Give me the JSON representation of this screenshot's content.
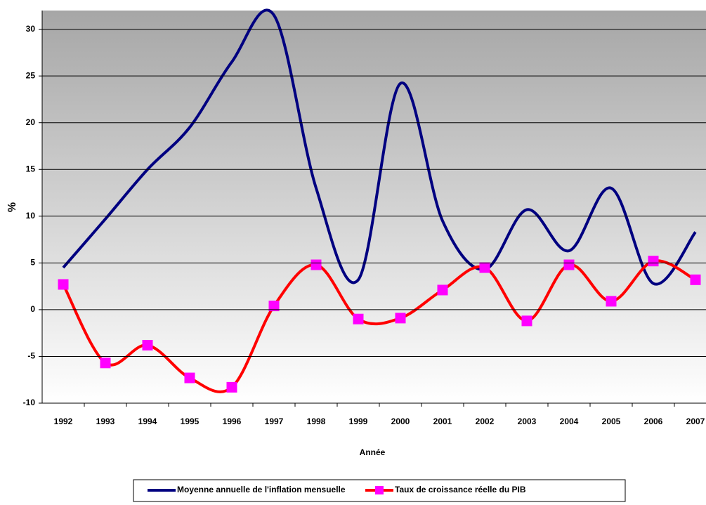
{
  "chart_data": {
    "type": "line",
    "x_label": "Année",
    "y_label": "%",
    "categories": [
      "1992",
      "1993",
      "1994",
      "1995",
      "1996",
      "1997",
      "1998",
      "1999",
      "2000",
      "2001",
      "2002",
      "2003",
      "2004",
      "2005",
      "2006",
      "2007"
    ],
    "series": [
      {
        "name": "Moyenne annuelle de l'inflation mensuelle",
        "color": "#000080",
        "marker": null,
        "values": [
          4.5,
          9.7,
          15,
          19.5,
          26.5,
          31.5,
          13,
          3.2,
          24.2,
          9.5,
          4.3,
          10.7,
          6.3,
          13,
          2.8,
          8.3
        ]
      },
      {
        "name": "Taux de croissance réelle du PIB",
        "color": "#ff0000",
        "marker": "#ff00ff",
        "values": [
          2.7,
          -5.7,
          -3.8,
          -7.3,
          -8.3,
          0.4,
          4.8,
          -1.0,
          -0.9,
          2.1,
          4.5,
          -1.2,
          4.8,
          0.9,
          5.2,
          3.2
        ]
      }
    ],
    "ylim": [
      -10,
      32
    ],
    "yticks": [
      -10,
      -5,
      0,
      5,
      10,
      15,
      20,
      25,
      30
    ],
    "grid": true,
    "smooth": true,
    "legend": "bottom"
  }
}
